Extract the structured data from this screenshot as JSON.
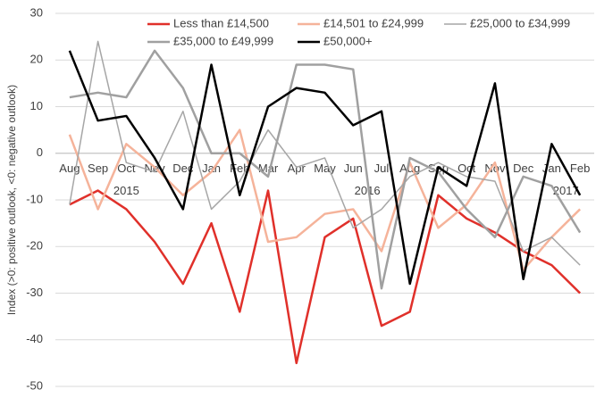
{
  "chart_data": {
    "type": "line",
    "y_label": "Index (>0: positive outlook, <0: negative outlook)",
    "categories": [
      "Aug",
      "Sep",
      "Oct",
      "Nov",
      "Dec",
      "Jan",
      "Feb",
      "Mar",
      "Apr",
      "May",
      "Jun",
      "Jul",
      "Aug",
      "Sep",
      "Oct",
      "Nov",
      "Dec",
      "Jan",
      "Feb"
    ],
    "year_labels": [
      "2015",
      "2016",
      "2017"
    ],
    "series": [
      {
        "name": "Less than £14,500",
        "color": "#e0302a",
        "values": [
          -11,
          -8,
          -12,
          -19,
          -28,
          -15,
          -34,
          -8,
          -45,
          -18,
          -14,
          -37,
          -34,
          -9,
          -14,
          -17,
          -21,
          -24,
          -30
        ]
      },
      {
        "name": "£14,501 to £24,999",
        "color": "#f5b39a",
        "values": [
          4,
          -12,
          2,
          -3,
          -9,
          -4,
          5,
          -19,
          -18,
          -13,
          -12,
          -21,
          -2,
          -16,
          -11,
          -2,
          -25,
          -18,
          -12
        ]
      },
      {
        "name": "£25,000 to £34,999",
        "color": "#a6a6a6",
        "values": [
          -11,
          24,
          -2,
          -4,
          9,
          -12,
          -6,
          5,
          -3,
          -1,
          -16,
          -12,
          -5,
          -2,
          -5,
          -6,
          -21,
          -18,
          -24
        ]
      },
      {
        "name": "£35,000 to £49,999",
        "color": "#a0a0a0",
        "values": [
          12,
          13,
          12,
          22,
          14,
          0,
          0,
          -5,
          19,
          19,
          18,
          -29,
          -1,
          -4,
          -12,
          -18,
          -5,
          -7,
          -17
        ]
      },
      {
        "name": "£50,000+",
        "color": "#000000",
        "values": [
          22,
          7,
          8,
          -1,
          -12,
          19,
          -9,
          10,
          14,
          13,
          6,
          9,
          -28,
          -3,
          -7,
          15,
          -27,
          2,
          -9
        ]
      }
    ],
    "ylim": [
      -50,
      30
    ],
    "yticks": [
      -50,
      -40,
      -30,
      -20,
      -10,
      0,
      10,
      20,
      30
    ],
    "grid": true
  }
}
